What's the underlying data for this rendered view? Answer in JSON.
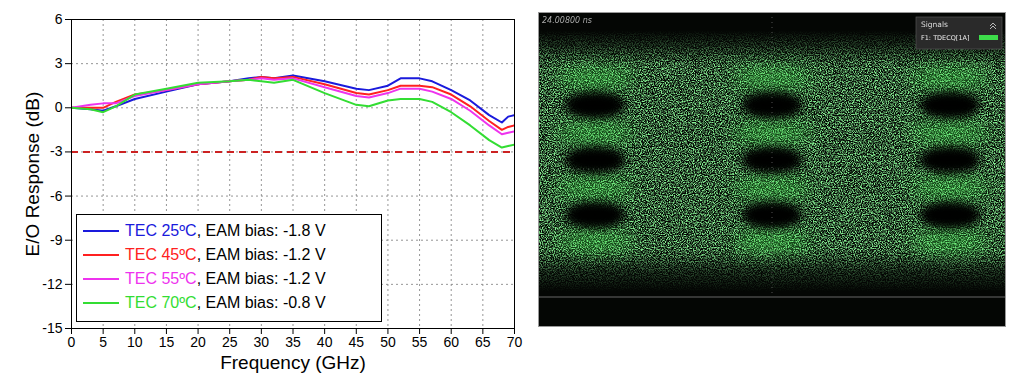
{
  "chart_data": [
    {
      "type": "line",
      "x_label": "Frequency (GHz)",
      "y_label": "E/O Response (dB)",
      "x": [
        0,
        3,
        5,
        7,
        10,
        15,
        20,
        25,
        28,
        30,
        32,
        35,
        40,
        45,
        47,
        50,
        52,
        55,
        57,
        60,
        63,
        66,
        68,
        69,
        70
      ],
      "series": [
        {
          "name": "TEC 25ºC, EAM bias: -1.8 V",
          "color": "#1a1adc",
          "values": [
            0,
            -0.1,
            -0.2,
            0.1,
            0.6,
            1.1,
            1.6,
            1.8,
            2.0,
            2.1,
            2.0,
            2.2,
            1.8,
            1.3,
            1.2,
            1.5,
            2.0,
            2.0,
            1.8,
            1.2,
            0.5,
            -0.5,
            -1.0,
            -0.6,
            -0.5
          ]
        },
        {
          "name": "TEC 45ºC, EAM bias: -1.2 V",
          "color": "#ff2020",
          "values": [
            0,
            0,
            0,
            0.4,
            0.9,
            1.2,
            1.6,
            1.8,
            1.9,
            2.1,
            2.0,
            2.1,
            1.6,
            1.0,
            0.9,
            1.2,
            1.5,
            1.5,
            1.4,
            0.9,
            0.1,
            -0.9,
            -1.5,
            -1.3,
            -1.2
          ]
        },
        {
          "name": "TEC 55ºC, EAM bias: -1.2 V",
          "color": "#ee33ee",
          "values": [
            0,
            0.2,
            0.3,
            0.3,
            0.8,
            1.2,
            1.6,
            1.8,
            1.9,
            2.0,
            1.9,
            2.0,
            1.4,
            0.8,
            0.7,
            1.0,
            1.3,
            1.3,
            1.1,
            0.6,
            -0.2,
            -1.2,
            -1.8,
            -1.7,
            -1.6
          ]
        },
        {
          "name": "TEC 70ºC, EAM bias: -0.8 V",
          "color": "#33dd33",
          "values": [
            0,
            -0.1,
            -0.3,
            0.1,
            0.9,
            1.3,
            1.7,
            1.8,
            1.9,
            1.8,
            1.7,
            1.9,
            1.0,
            0.2,
            0.1,
            0.5,
            0.6,
            0.6,
            0.4,
            -0.3,
            -1.2,
            -2.2,
            -2.7,
            -2.6,
            -2.5
          ]
        }
      ],
      "hlines": [
        {
          "value": -3,
          "color": "#cc2222",
          "line_style": "dashed"
        }
      ],
      "xlim": [
        0,
        70
      ],
      "xticks": [
        0,
        5,
        10,
        15,
        20,
        25,
        30,
        35,
        40,
        45,
        50,
        55,
        60,
        65,
        70
      ],
      "ylim": [
        -15,
        6
      ],
      "yticks": [
        -15,
        -12,
        -9,
        -6,
        -3,
        0,
        3,
        6
      ],
      "grid": true,
      "legend": "lower left"
    },
    {
      "type": "eye_diagram",
      "timestamp": "24.00800 ns",
      "legend_title": "Signals",
      "series": [
        {
          "name": "F1: TDECQ[1A]",
          "color": "#3ddc4a"
        }
      ]
    }
  ]
}
